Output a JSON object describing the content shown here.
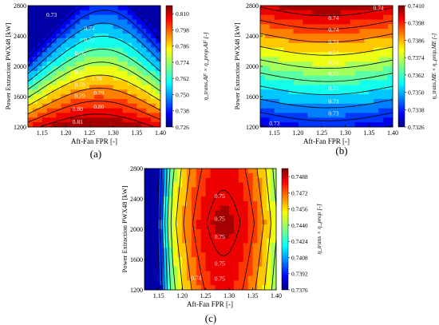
{
  "chart_data": [
    {
      "type": "heatmap",
      "panel_label": "(a)",
      "xlabel": "Aft-Fan FPR [-]",
      "ylabel": "Power Extraction PWX48 [kW]",
      "colorbar_label": "η_trans,AF × η_prop,AF [-]",
      "xlim": [
        1.12,
        1.4
      ],
      "ylim": [
        1200,
        2800
      ],
      "x_ticks": [
        "1.15",
        "1.20",
        "1.25",
        "1.30",
        "1.35",
        "1.40"
      ],
      "y_ticks": [
        "1200",
        "1600",
        "2000",
        "2400",
        "2800"
      ],
      "colorbar_range": [
        0.726,
        0.816
      ],
      "colorbar_ticks": [
        "0.810",
        "0.798",
        "0.786",
        "0.774",
        "0.762",
        "0.750",
        "0.738",
        "0.726"
      ],
      "contour_labels": [
        {
          "text": "0.81",
          "x": 1.225,
          "y": 1260
        },
        {
          "text": "0.80",
          "x": 1.27,
          "y": 1460
        },
        {
          "text": "0.80",
          "x": 1.225,
          "y": 1430
        },
        {
          "text": "0.79",
          "x": 1.27,
          "y": 1640
        },
        {
          "text": "0.79",
          "x": 1.23,
          "y": 1600
        },
        {
          "text": "0.78",
          "x": 1.23,
          "y": 1750
        },
        {
          "text": "0.78",
          "x": 1.265,
          "y": 1830
        },
        {
          "text": "0.77",
          "x": 1.23,
          "y": 1920
        },
        {
          "text": "0.76",
          "x": 1.23,
          "y": 2160
        },
        {
          "text": "0.75",
          "x": 1.25,
          "y": 2340
        },
        {
          "text": "0.74",
          "x": 1.25,
          "y": 2490
        },
        {
          "text": "0.73",
          "x": 1.17,
          "y": 2670
        }
      ]
    },
    {
      "type": "heatmap",
      "panel_label": "(b)",
      "xlabel": "Aft-Fan FPR [-]",
      "ylabel": "Power Extraction PWX48 [kW]",
      "colorbar_label": "η_trans,ME × η_prop,ME [-]",
      "xlim": [
        1.12,
        1.4
      ],
      "ylim": [
        1200,
        2800
      ],
      "x_ticks": [
        "1.15",
        "1.20",
        "1.25",
        "1.30",
        "1.35",
        "1.40"
      ],
      "y_ticks": [
        "1200",
        "1600",
        "2000",
        "2400",
        "2800"
      ],
      "colorbar_range": [
        0.7326,
        0.741
      ],
      "colorbar_ticks": [
        "0.7410",
        "0.7398",
        "0.7386",
        "0.7374",
        "0.7362",
        "0.7350",
        "0.7338",
        "0.7326"
      ],
      "contour_labels": [
        {
          "text": "0.74",
          "x": 1.37,
          "y": 2760
        },
        {
          "text": "0.74",
          "x": 1.275,
          "y": 2630
        },
        {
          "text": "0.74",
          "x": 1.275,
          "y": 2470
        },
        {
          "text": "0.74",
          "x": 1.275,
          "y": 2310
        },
        {
          "text": "0.74",
          "x": 1.275,
          "y": 2170
        },
        {
          "text": "0.74",
          "x": 1.275,
          "y": 2040
        },
        {
          "text": "0.73",
          "x": 1.275,
          "y": 1890
        },
        {
          "text": "0.73",
          "x": 1.275,
          "y": 1700
        },
        {
          "text": "0.73",
          "x": 1.275,
          "y": 1530
        },
        {
          "text": "0.73",
          "x": 1.275,
          "y": 1370
        },
        {
          "text": "0.73",
          "x": 1.15,
          "y": 1240
        }
      ]
    },
    {
      "type": "heatmap",
      "panel_label": "(c)",
      "xlabel": "Aft-Fan FPR [-]",
      "ylabel": "Power Extraction PWX48 [kW]",
      "colorbar_label": "η_trans × η_prop [-]",
      "xlim": [
        1.12,
        1.4
      ],
      "ylim": [
        1200,
        2800
      ],
      "x_ticks": [
        "1.15",
        "1.20",
        "1.25",
        "1.30",
        "1.35",
        "1.40"
      ],
      "y_ticks": [
        "1200",
        "1600",
        "2000",
        "2400",
        "2800"
      ],
      "colorbar_range": [
        0.7376,
        0.7496
      ],
      "colorbar_ticks": [
        "0.7488",
        "0.7472",
        "0.7456",
        "0.7440",
        "0.7424",
        "0.7408",
        "0.7392",
        "0.7376"
      ],
      "contour_labels": [
        {
          "text": "0.75",
          "x": 1.28,
          "y": 2430
        },
        {
          "text": "0.75",
          "x": 1.28,
          "y": 2130
        },
        {
          "text": "0.75",
          "x": 1.28,
          "y": 1890
        },
        {
          "text": "0.75",
          "x": 1.28,
          "y": 1540
        },
        {
          "text": "0.75",
          "x": 1.28,
          "y": 1340
        },
        {
          "text": "0.74",
          "x": 1.23,
          "y": 1350
        }
      ]
    }
  ]
}
